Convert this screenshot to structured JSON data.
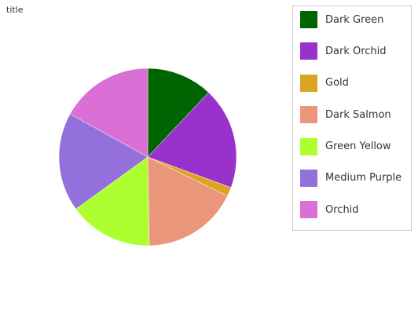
{
  "chart_data": {
    "type": "pie",
    "title": "title",
    "categories": [
      "Dark Green",
      "Dark Orchid",
      "Gold",
      "Dark Salmon",
      "Green Yellow",
      "Medium Purple",
      "Orchid"
    ],
    "values": [
      11,
      17,
      1.5,
      16,
      14,
      16.5,
      15.5
    ],
    "colors": [
      "#006400",
      "#9932cc",
      "#daa520",
      "#e9967a",
      "#adff2f",
      "#9370db",
      "#da70d6"
    ],
    "start_angle_deg": 0,
    "direction": "clockwise",
    "legend_position": "right"
  }
}
